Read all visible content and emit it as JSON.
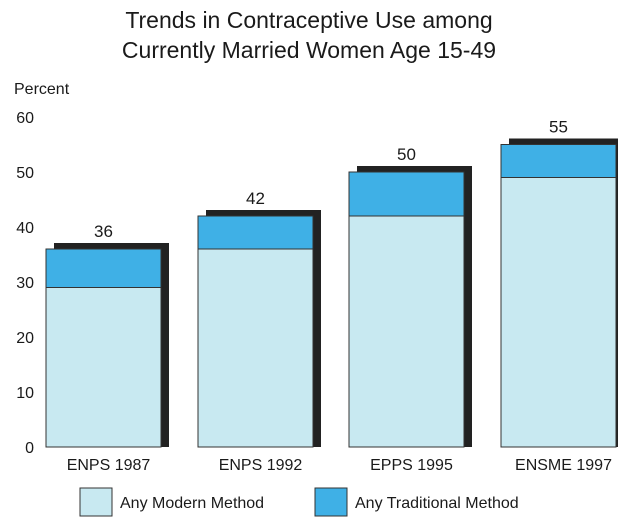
{
  "chart_data": {
    "type": "bar",
    "stacked": true,
    "title_lines": [
      "Trends in Contraceptive Use among",
      "Currently Married Women Age 15-49"
    ],
    "ylabel": "Percent",
    "ylim": [
      0,
      60
    ],
    "yticks": [
      0,
      10,
      20,
      30,
      40,
      50,
      60
    ],
    "categories": [
      "ENPS 1987",
      "ENPS 1992",
      "EPPS 1995",
      "ENSME 1997"
    ],
    "totals": [
      36,
      42,
      50,
      55
    ],
    "series": [
      {
        "name": "Any Modern Method",
        "values": [
          29,
          36,
          42,
          49
        ],
        "color": "#c8e9f1"
      },
      {
        "name": "Any Traditional Method",
        "values": [
          7,
          6,
          8,
          6
        ],
        "color": "#3fb0e6"
      }
    ],
    "shadow_color": "#222222",
    "legend_position": "bottom"
  }
}
